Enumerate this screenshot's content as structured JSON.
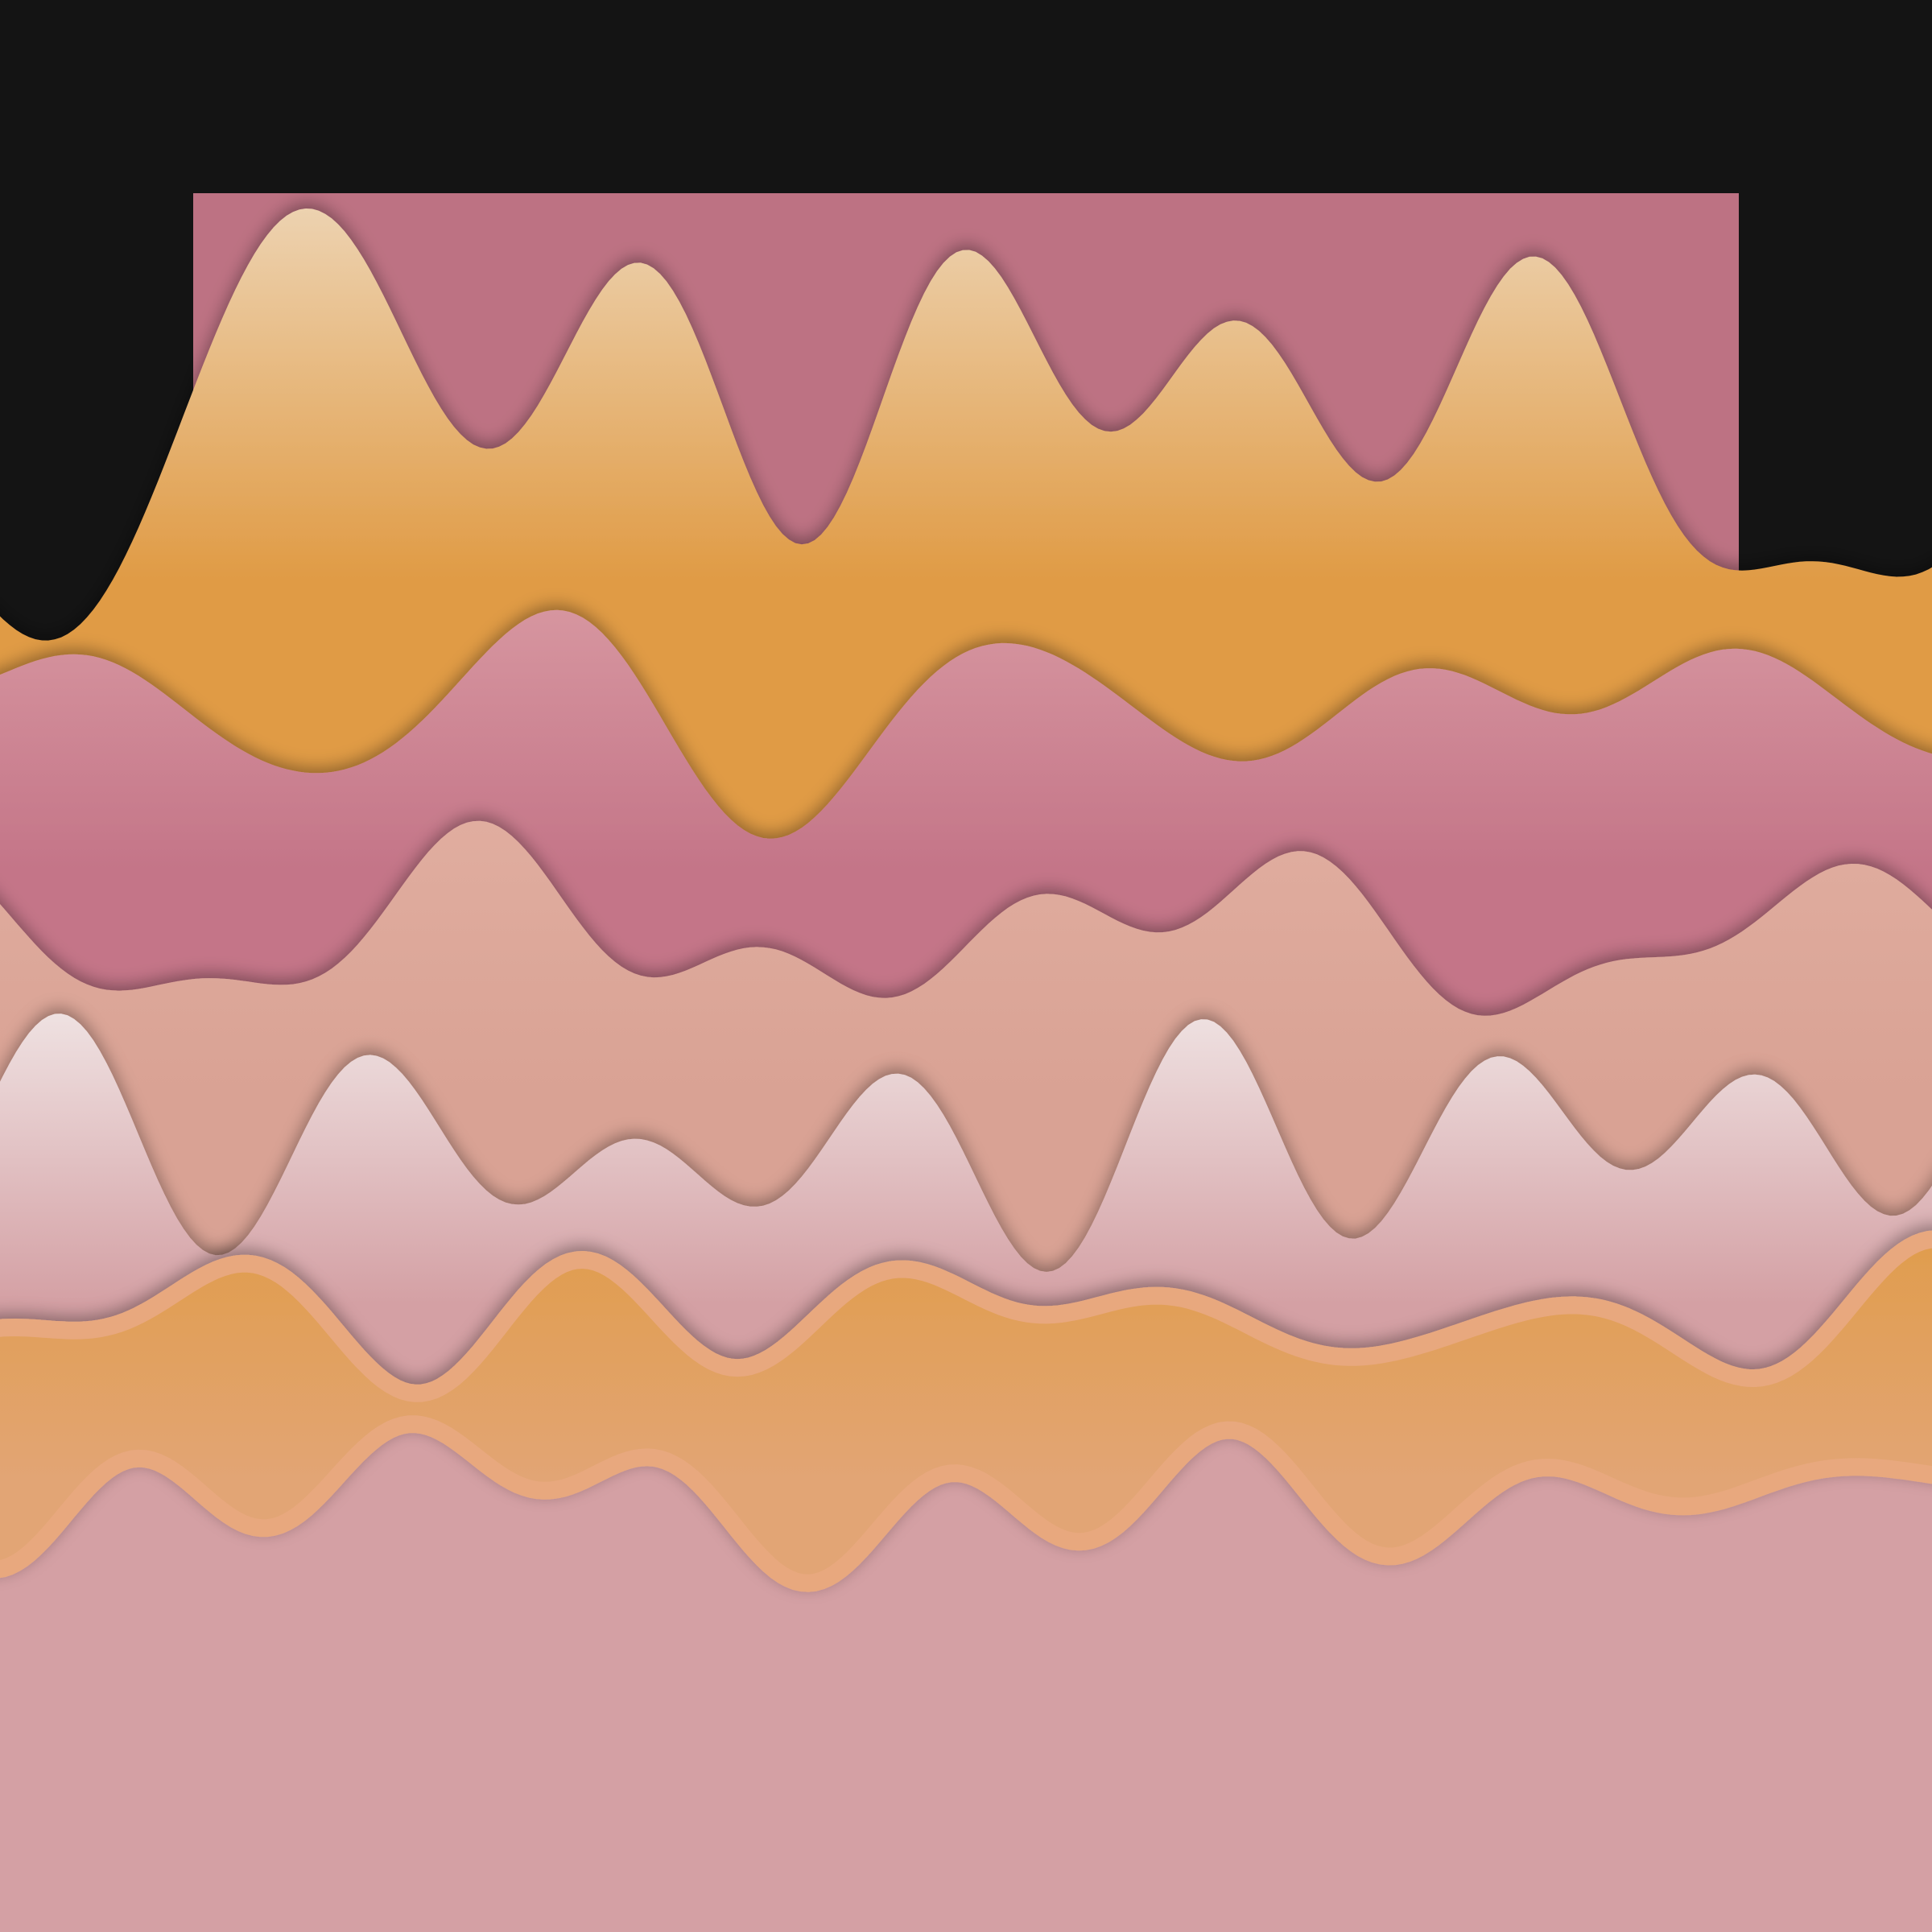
{
  "colors": {
    "background": "#141414",
    "square": "#bd7283",
    "peak_white": "#f4f1ec",
    "orange": "#e09b45",
    "pink": "#c98090",
    "pink_light": "#dea3a9",
    "salmon": "#deaa9c",
    "white_pink": "#f2eceb",
    "front_outline": "#e8a87e"
  },
  "layers": [
    {
      "name": "orange-peak-ridge",
      "top": "#f4f1ec",
      "bottom": "#e09b45"
    },
    {
      "name": "pink-ridge",
      "top": "#dea3a9",
      "bottom": "#c47588"
    },
    {
      "name": "salmon-ridge",
      "top": "#e2b0a2",
      "bottom": "#d9a294"
    },
    {
      "name": "white-pink-ridge",
      "top": "#f6f3f2",
      "bottom": "#d4a0a4"
    },
    {
      "name": "orange-front-ridge",
      "top": "#e09b45",
      "bottom": "#e2a575"
    }
  ]
}
